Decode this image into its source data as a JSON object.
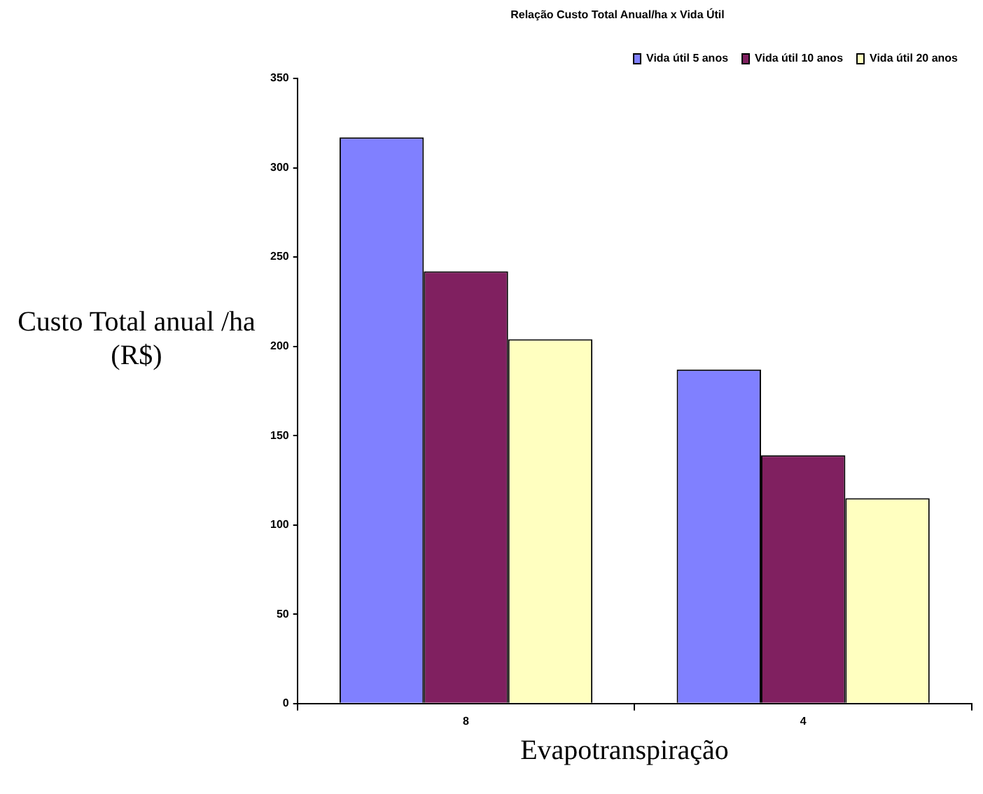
{
  "chart_data": {
    "type": "bar",
    "title": "Relação Custo Total Anual/ha x Vida Útil",
    "xlabel": "Evapotranspiração",
    "ylabel": "Custo Total anual /ha (R$)",
    "categories": [
      "8",
      "4"
    ],
    "series": [
      {
        "name": "Vida útil 5 anos",
        "color": "#8080ff",
        "values": [
          317,
          187
        ]
      },
      {
        "name": "Vida útil 10 anos",
        "color": "#802060",
        "values": [
          242,
          139
        ]
      },
      {
        "name": "Vida útil 20 anos",
        "color": "#ffffc0",
        "values": [
          204,
          115
        ]
      }
    ],
    "ylim": [
      0,
      350
    ],
    "yticks": [
      0,
      50,
      100,
      150,
      200,
      250,
      300,
      350
    ],
    "grid": false,
    "legend": "top right"
  }
}
